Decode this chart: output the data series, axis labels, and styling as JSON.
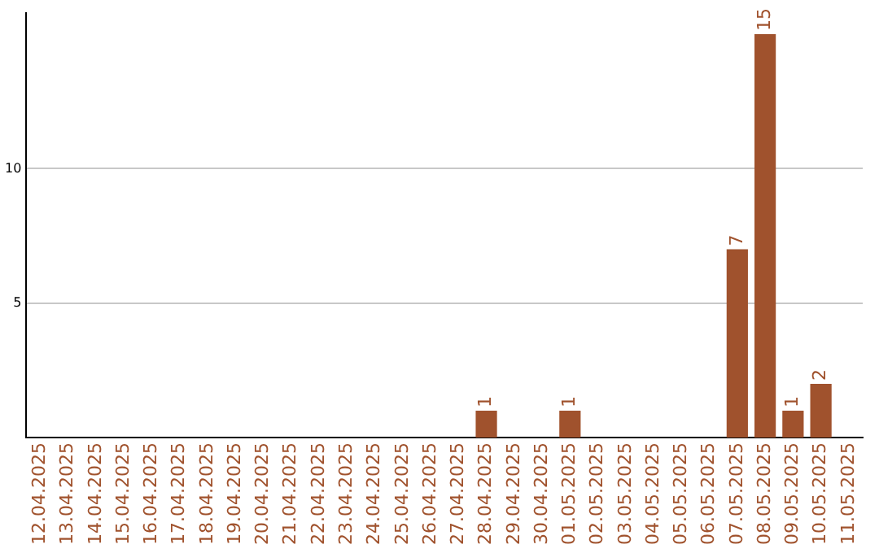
{
  "chart_data": {
    "type": "bar",
    "categories": [
      "12.04.2025",
      "13.04.2025",
      "14.04.2025",
      "15.04.2025",
      "16.04.2025",
      "17.04.2025",
      "18.04.2025",
      "19.04.2025",
      "20.04.2025",
      "21.04.2025",
      "22.04.2025",
      "23.04.2025",
      "24.04.2025",
      "25.04.2025",
      "26.04.2025",
      "27.04.2025",
      "28.04.2025",
      "29.04.2025",
      "30.04.2025",
      "01.05.2025",
      "02.05.2025",
      "03.05.2025",
      "04.05.2025",
      "05.05.2025",
      "06.05.2025",
      "07.05.2025",
      "08.05.2025",
      "09.05.2025",
      "10.05.2025",
      "11.05.2025"
    ],
    "values": [
      0,
      0,
      0,
      0,
      0,
      0,
      0,
      0,
      0,
      0,
      0,
      0,
      0,
      0,
      0,
      0,
      1,
      0,
      0,
      1,
      0,
      0,
      0,
      0,
      0,
      7,
      15,
      1,
      2,
      0
    ],
    "value_labels": [
      null,
      null,
      null,
      null,
      null,
      null,
      null,
      null,
      null,
      null,
      null,
      null,
      null,
      null,
      null,
      null,
      "1",
      null,
      null,
      "1",
      null,
      null,
      null,
      null,
      null,
      "7",
      "15",
      "1",
      "2",
      null
    ],
    "color": "#a0522d",
    "ylim": [
      0,
      15.8
    ],
    "yticks": [
      5,
      10
    ],
    "grid": "y",
    "legend": false
  }
}
